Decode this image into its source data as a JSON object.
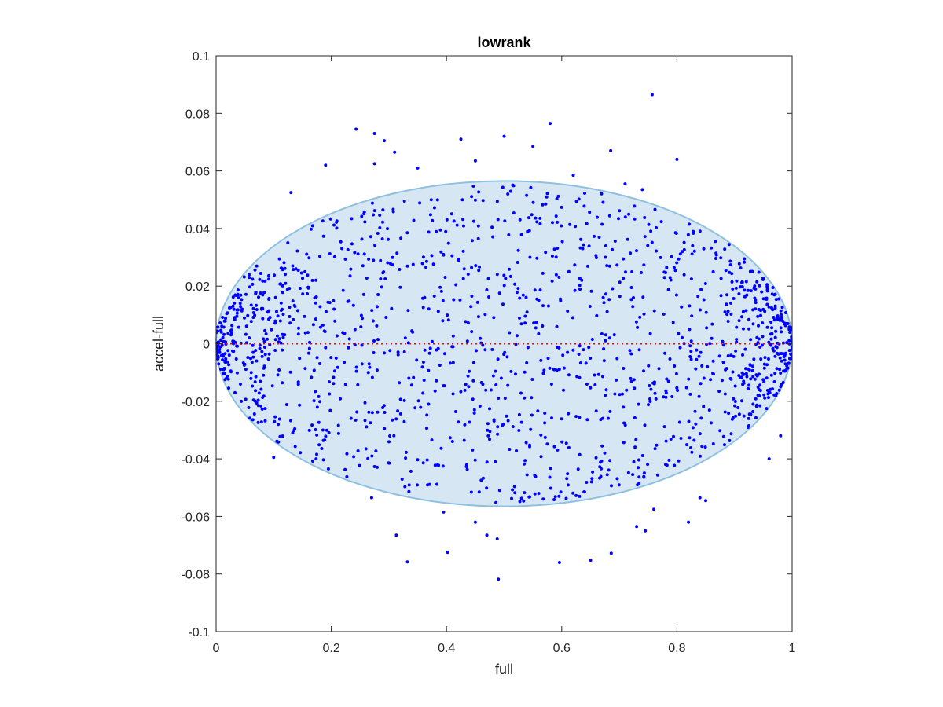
{
  "chart_data": {
    "type": "scatter",
    "title": "lowrank",
    "xlabel": "full",
    "ylabel": "accel-full",
    "xlim": [
      0,
      1
    ],
    "ylim": [
      -0.1,
      0.1
    ],
    "x_ticks": [
      "0",
      "0.2",
      "0.4",
      "0.6",
      "0.8",
      "1"
    ],
    "y_ticks": [
      "0.1",
      "0.08",
      "0.06",
      "0.04",
      "0.02",
      "0",
      "-0.02",
      "-0.04",
      "-0.06",
      "-0.08",
      "-0.1"
    ],
    "x_tick_values": [
      0,
      0.2,
      0.4,
      0.6,
      0.8,
      1
    ],
    "y_tick_values": [
      0.1,
      0.08,
      0.06,
      0.04,
      0.02,
      0,
      -0.02,
      -0.04,
      -0.06,
      -0.08,
      -0.1
    ],
    "grid": false,
    "point_color": "#0000ff",
    "point_count_estimate": 1500,
    "reference_line": {
      "y": 0,
      "x": [
        0,
        1
      ],
      "color": "#ff0000",
      "style": "dotted"
    },
    "ellipse": {
      "center_x": 0.5,
      "center_y": 0,
      "radius_x": 0.5,
      "radius_y": 0.0565,
      "fill": "#d6e7f3",
      "stroke": "#8ec0e0"
    },
    "outlier_points": [
      [
        0.757,
        0.0865
      ],
      [
        0.58,
        0.0765
      ],
      [
        0.243,
        0.0745
      ],
      [
        0.275,
        0.073
      ],
      [
        0.292,
        0.0705
      ],
      [
        0.425,
        0.071
      ],
      [
        0.5,
        0.072
      ],
      [
        0.55,
        0.0685
      ],
      [
        0.685,
        0.067
      ],
      [
        0.31,
        0.0665
      ],
      [
        0.8,
        0.064
      ],
      [
        0.19,
        0.062
      ],
      [
        0.275,
        0.0625
      ],
      [
        0.45,
        0.0635
      ],
      [
        0.35,
        0.061
      ],
      [
        0.62,
        0.0585
      ],
      [
        0.71,
        0.0555
      ],
      [
        0.74,
        0.0535
      ],
      [
        0.13,
        0.0525
      ],
      [
        0.45,
        -0.062
      ],
      [
        0.47,
        -0.0665
      ],
      [
        0.313,
        -0.0665
      ],
      [
        0.402,
        -0.0725
      ],
      [
        0.488,
        -0.0678
      ],
      [
        0.332,
        -0.0758
      ],
      [
        0.596,
        -0.076
      ],
      [
        0.65,
        -0.0752
      ],
      [
        0.686,
        -0.0728
      ],
      [
        0.49,
        -0.0818
      ],
      [
        0.745,
        -0.065
      ],
      [
        0.73,
        -0.0635
      ],
      [
        0.85,
        -0.0545
      ],
      [
        0.84,
        -0.0535
      ],
      [
        0.96,
        -0.04
      ],
      [
        0.98,
        -0.032
      ],
      [
        0.1,
        -0.0395
      ],
      [
        0.195,
        -0.0435
      ],
      [
        0.56,
        -0.052
      ],
      [
        0.27,
        -0.0535
      ],
      [
        0.395,
        -0.0585
      ],
      [
        0.76,
        -0.0575
      ],
      [
        0.82,
        -0.062
      ]
    ]
  }
}
